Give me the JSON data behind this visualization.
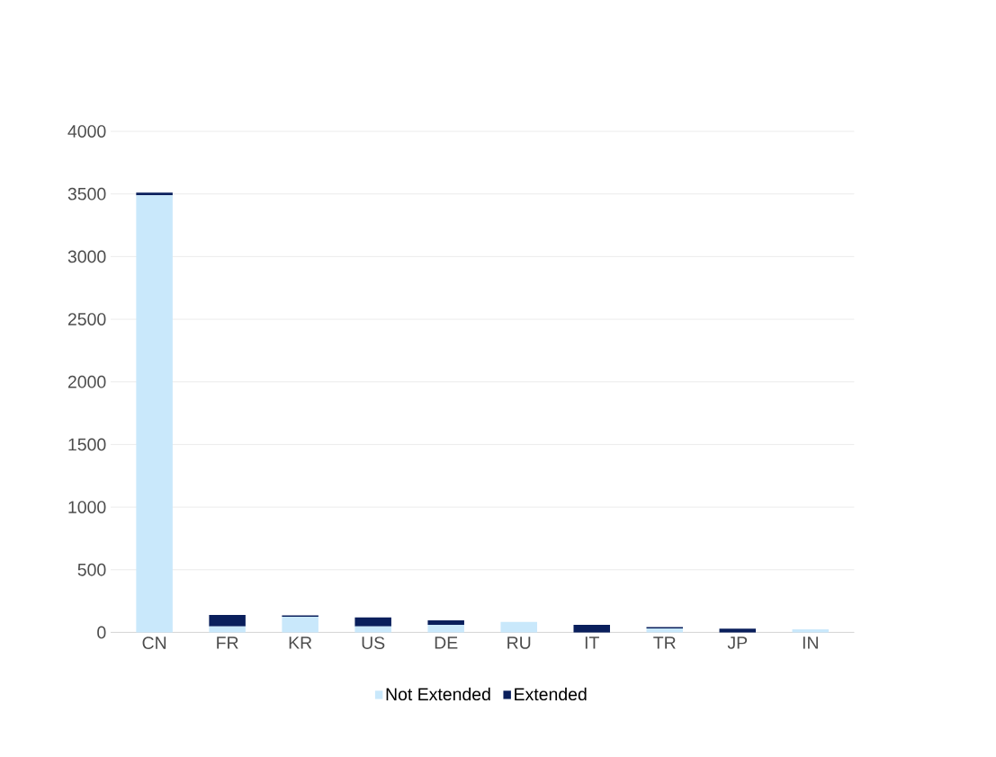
{
  "chart_data": {
    "type": "bar",
    "stacked": true,
    "categories": [
      "CN",
      "FR",
      "KR",
      "US",
      "DE",
      "RU",
      "IT",
      "TR",
      "JP",
      "IN"
    ],
    "series": [
      {
        "name": "Not Extended",
        "color": "#c9e8fb",
        "values": [
          3490,
          48,
          125,
          48,
          60,
          84,
          null,
          31,
          null,
          24
        ]
      },
      {
        "name": "Extended",
        "color": "#0a1f5c",
        "values": [
          20,
          92,
          10,
          72,
          36,
          0,
          60,
          12,
          30,
          0
        ]
      }
    ],
    "ylim": [
      0,
      4000
    ],
    "yticks": [
      0,
      500,
      1000,
      1500,
      2000,
      2500,
      3000,
      3500,
      4000
    ],
    "grid": "y",
    "legend": "bottom"
  }
}
